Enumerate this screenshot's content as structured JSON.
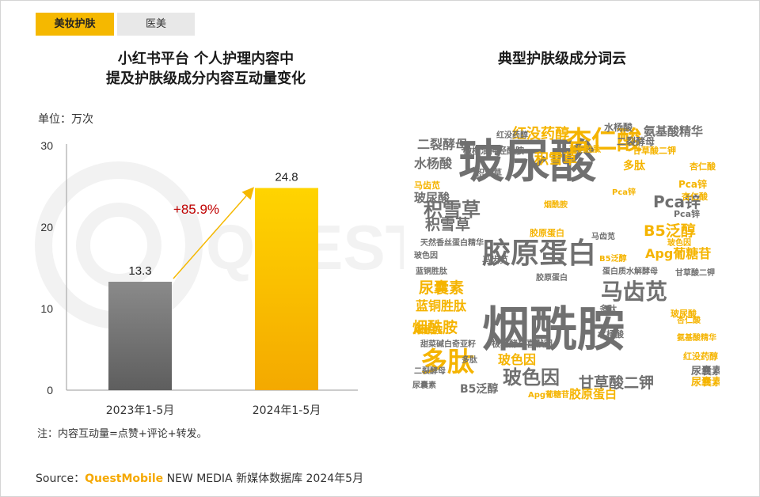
{
  "tabs": [
    {
      "label": "美妆护肤",
      "active": true
    },
    {
      "label": "医美",
      "active": false
    }
  ],
  "left_title_line1": "小红书平台 个人护理内容中",
  "left_title_line2": "提及护肤级成分内容互动量变化",
  "right_title": "典型护肤级成分词云",
  "unit_label": "单位：万次",
  "note": "注：内容互动量=点赞+评论+转发。",
  "source": {
    "prefix": "Source：",
    "brand": "QuestMobile",
    "suffix": " NEW MEDIA 新媒体数据库 2024年5月"
  },
  "colors": {
    "accent": "#f5b800",
    "gray_bar": "#7a7a7a",
    "growth_label": "#c00000",
    "cloud_gray": "#707070",
    "cloud_gold": "#f5b400"
  },
  "chart_data": {
    "type": "bar",
    "categories": [
      "2023年1-5月",
      "2024年1-5月"
    ],
    "values": [
      13.3,
      24.8
    ],
    "value_labels": [
      "13.3",
      "24.8"
    ],
    "growth_label": "+85.9%",
    "ylim": [
      0,
      30
    ],
    "yticks": [
      "0",
      "10",
      "20",
      "30"
    ]
  },
  "word_cloud": [
    {
      "text": "烟酰胺",
      "color": "gray"
    },
    {
      "text": "玻尿酸",
      "color": "gray"
    },
    {
      "text": "胶原蛋白",
      "color": "gray"
    },
    {
      "text": "杏仁酸",
      "color": "gold"
    },
    {
      "text": "多肽",
      "color": "gold"
    },
    {
      "text": "马齿苋",
      "color": "gray"
    },
    {
      "text": "玻色因",
      "color": "gray"
    },
    {
      "text": "积雪草",
      "color": "gray"
    },
    {
      "text": "红没药醇",
      "color": "gold"
    },
    {
      "text": "二裂酵母",
      "color": "gray"
    },
    {
      "text": "氨基酸精华",
      "color": "gray"
    },
    {
      "text": "Pca锌",
      "color": "gray"
    },
    {
      "text": "B5泛醇",
      "color": "gold"
    },
    {
      "text": "Apg葡糖苷",
      "color": "gold"
    },
    {
      "text": "尿囊素",
      "color": "gold"
    },
    {
      "text": "蓝铜胜肽",
      "color": "gold"
    },
    {
      "text": "甘草酸二钾",
      "color": "gray"
    },
    {
      "text": "水杨酸",
      "color": "gray"
    },
    {
      "text": "天然香丝蛋白精华",
      "color": "gray"
    },
    {
      "text": "甜菜碱白奇亚籽",
      "color": "gray"
    },
    {
      "text": "极地酵母喜默因",
      "color": "gray"
    },
    {
      "text": "蛋白质水解酵母",
      "color": "gray"
    },
    {
      "text": "烟酰胺",
      "color": "gold"
    },
    {
      "text": "玻色因",
      "color": "gold"
    },
    {
      "text": "B5泛醇",
      "color": "gray"
    },
    {
      "text": "胶原蛋白",
      "color": "gold"
    },
    {
      "text": "多肽",
      "color": "gray"
    },
    {
      "text": "水杨酸",
      "color": "gray"
    },
    {
      "text": "玻尿酸",
      "color": "gray"
    },
    {
      "text": "Pca锌",
      "color": "gold"
    },
    {
      "text": "杏仁酸",
      "color": "gold"
    },
    {
      "text": "红没药醇",
      "color": "gold"
    },
    {
      "text": "尿囊素",
      "color": "gold"
    },
    {
      "text": "积雪草",
      "color": "gray"
    },
    {
      "text": "二裂酵母",
      "color": "gray"
    },
    {
      "text": "马齿苋",
      "color": "gray"
    },
    {
      "text": "甘草酸二钾",
      "color": "gray"
    },
    {
      "text": "橄榄油神经酰胺",
      "color": "gray"
    },
    {
      "text": "胶原蛋白",
      "color": "gold"
    },
    {
      "text": "蓝铜胜肽",
      "color": "gray"
    },
    {
      "text": "Apg葡糖苷",
      "color": "gold"
    },
    {
      "text": "氨基酸精华",
      "color": "gold"
    },
    {
      "text": "多肽",
      "color": "gold"
    },
    {
      "text": "积雪草",
      "color": "gold"
    },
    {
      "text": "Pca锌",
      "color": "gray"
    },
    {
      "text": "杏仁酸",
      "color": "gold"
    },
    {
      "text": "尿囊素",
      "color": "gray"
    },
    {
      "text": "烟酰胺",
      "color": "gold"
    },
    {
      "text": "红没药醇",
      "color": "gray"
    },
    {
      "text": "玻色因",
      "color": "gold"
    },
    {
      "text": "水杨酸",
      "color": "gray"
    },
    {
      "text": "二裂酵母",
      "color": "gray"
    },
    {
      "text": "B5泛醇",
      "color": "gold"
    },
    {
      "text": "马齿苋",
      "color": "gold"
    },
    {
      "text": "甘草酸二钾",
      "color": "gold"
    },
    {
      "text": "胶原蛋白",
      "color": "gray"
    },
    {
      "text": "蓝铜胜肽",
      "color": "gold"
    },
    {
      "text": "多肽",
      "color": "gray"
    },
    {
      "text": "玻尿酸",
      "color": "gold"
    },
    {
      "text": "积雪草",
      "color": "gray"
    },
    {
      "text": "尿囊素",
      "color": "gray"
    },
    {
      "text": "Pca锌",
      "color": "gold"
    },
    {
      "text": "杏仁酸",
      "color": "gold"
    },
    {
      "text": "烟酰胺",
      "color": "gold"
    },
    {
      "text": "玻色因",
      "color": "gray"
    },
    {
      "text": "马齿苋",
      "color": "gray"
    }
  ]
}
